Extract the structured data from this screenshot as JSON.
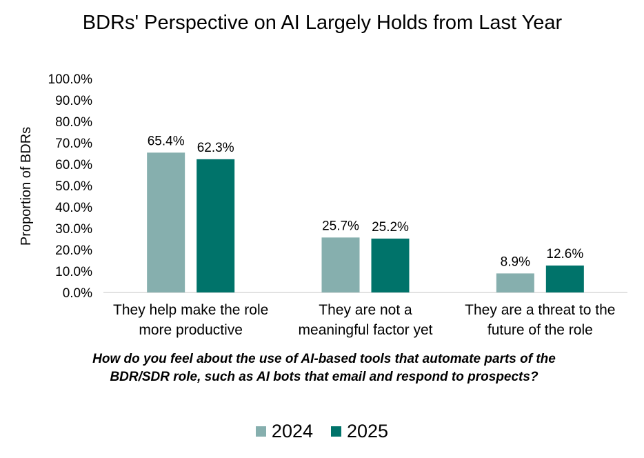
{
  "chart_data": {
    "type": "bar",
    "title": "BDRs' Perspective on AI Largely Holds from Last Year",
    "ylabel": "Proportion of BDRs",
    "xlabel": "How do you feel about the use of AI-based tools that automate parts of the BDR/SDR role, such as AI bots that email and respond to prospects?",
    "categories": [
      "They help make the role more productive",
      "They are not a meaningful factor yet",
      "They are a threat to the future of the role"
    ],
    "series": [
      {
        "name": "2024",
        "color": "#86afae",
        "values": [
          65.4,
          25.7,
          8.9
        ],
        "labels": [
          "65.4%",
          "25.7%",
          "8.9%"
        ]
      },
      {
        "name": "2025",
        "color": "#00736a",
        "values": [
          62.3,
          25.2,
          12.6
        ],
        "labels": [
          "62.3%",
          "25.2%",
          "12.6%"
        ]
      }
    ],
    "ylim": [
      0,
      100
    ],
    "yticks": [
      "0.0%",
      "10.0%",
      "20.0%",
      "30.0%",
      "40.0%",
      "50.0%",
      "60.0%",
      "70.0%",
      "80.0%",
      "90.0%",
      "100.0%"
    ],
    "grid": false,
    "legend_position": "bottom"
  }
}
